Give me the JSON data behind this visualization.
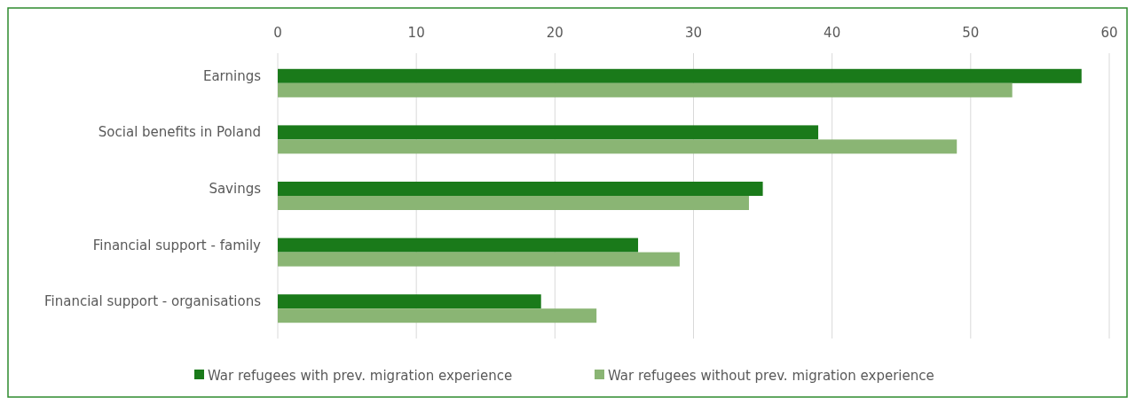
{
  "chart_data": {
    "type": "bar",
    "orientation": "horizontal",
    "categories": [
      "Earnings",
      "Social benefits in Poland",
      "Savings",
      "Financial support - family",
      "Financial support - organisations"
    ],
    "series": [
      {
        "name": "War refugees with prev. migration experience",
        "color": "#1a7a1a",
        "values": [
          58,
          39,
          35,
          26,
          19
        ]
      },
      {
        "name": "War refugees without prev. migration experience",
        "color": "#8ab574",
        "values": [
          53,
          49,
          34,
          29,
          23
        ]
      }
    ],
    "xlim": [
      0,
      60
    ],
    "xticks": [
      0,
      10,
      20,
      30,
      40,
      50,
      60
    ],
    "grid": "x",
    "legend": "bottom"
  }
}
